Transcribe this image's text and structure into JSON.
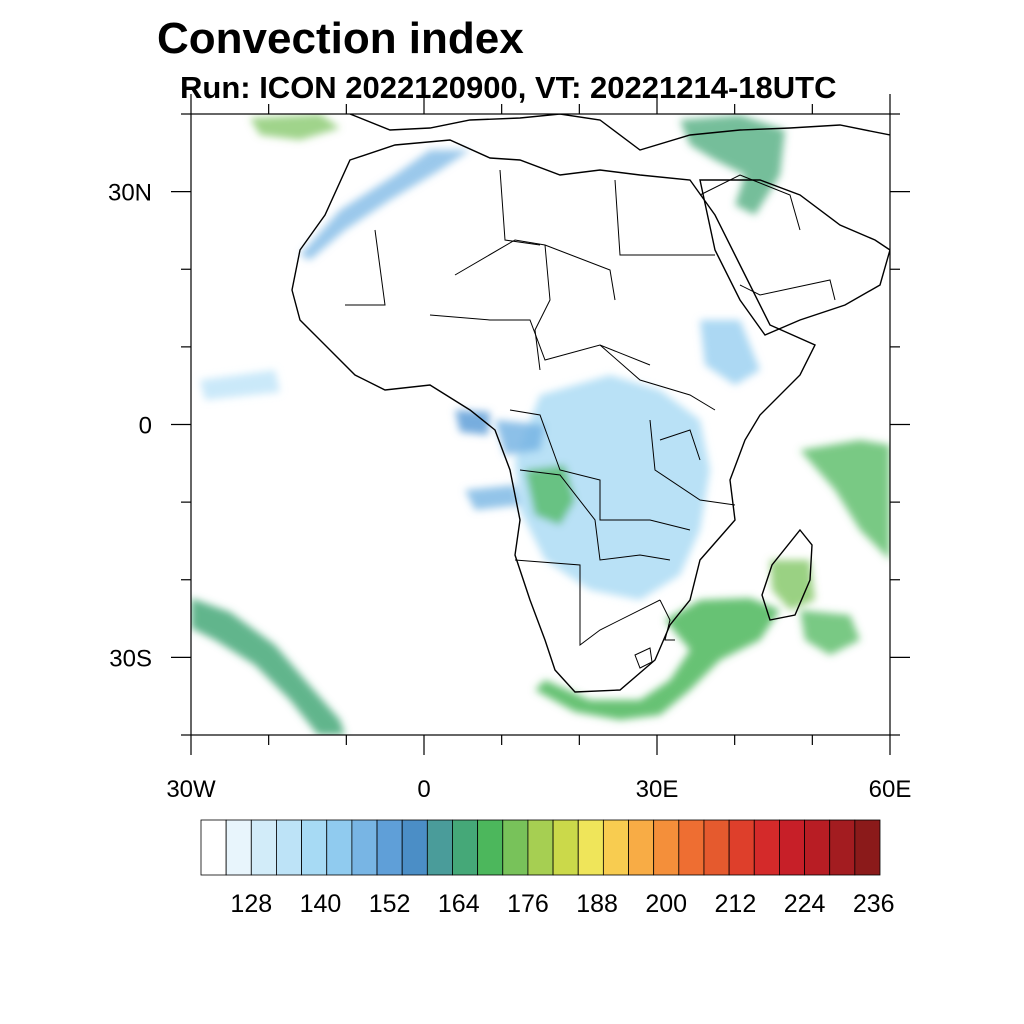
{
  "title": "Convection index",
  "subtitle": "Run: ICON 2022120900,  VT: 20221214-18UTC",
  "map": {
    "projection": "cylindrical equidistant",
    "lon_range": [
      -30,
      60
    ],
    "lat_range": [
      -40,
      40
    ],
    "lon_ticks": [
      {
        "value": -30,
        "label": "30W"
      },
      {
        "value": 0,
        "label": "0"
      },
      {
        "value": 30,
        "label": "30E"
      },
      {
        "value": 60,
        "label": "60E"
      }
    ],
    "lat_ticks": [
      {
        "value": 30,
        "label": "30N"
      },
      {
        "value": 0,
        "label": "0"
      },
      {
        "value": -30,
        "label": "30S"
      }
    ],
    "coast_color": "#000000"
  },
  "colorbar": {
    "levels": [
      122,
      125,
      128,
      131,
      134,
      137,
      140,
      143,
      146,
      149,
      152,
      155,
      158,
      161,
      164,
      167,
      170,
      173,
      176,
      179,
      182,
      185,
      188,
      191,
      194,
      197,
      200,
      203,
      206,
      209,
      212,
      215,
      218,
      221,
      224,
      227,
      230,
      233,
      236,
      239
    ],
    "colors": [
      "#ffffff",
      "#e8f5fc",
      "#d2ecf9",
      "#bde3f7",
      "#a7daf4",
      "#90cbef",
      "#78b5e4",
      "#5f9fd8",
      "#4b8ec6",
      "#4a9c9a",
      "#45a878",
      "#4cb75c",
      "#78c25a",
      "#a6cf52",
      "#cbd94a",
      "#efe55a",
      "#f8cc50",
      "#f8ac45",
      "#f48f3a",
      "#ee6e32",
      "#e55a2e",
      "#de3f2b",
      "#d42a2a",
      "#c71f28",
      "#b81d24",
      "#a31c20",
      "#8b1a1a"
    ],
    "labels": [
      "128",
      "140",
      "152",
      "164",
      "176",
      "188",
      "200",
      "212",
      "224",
      "236"
    ]
  }
}
